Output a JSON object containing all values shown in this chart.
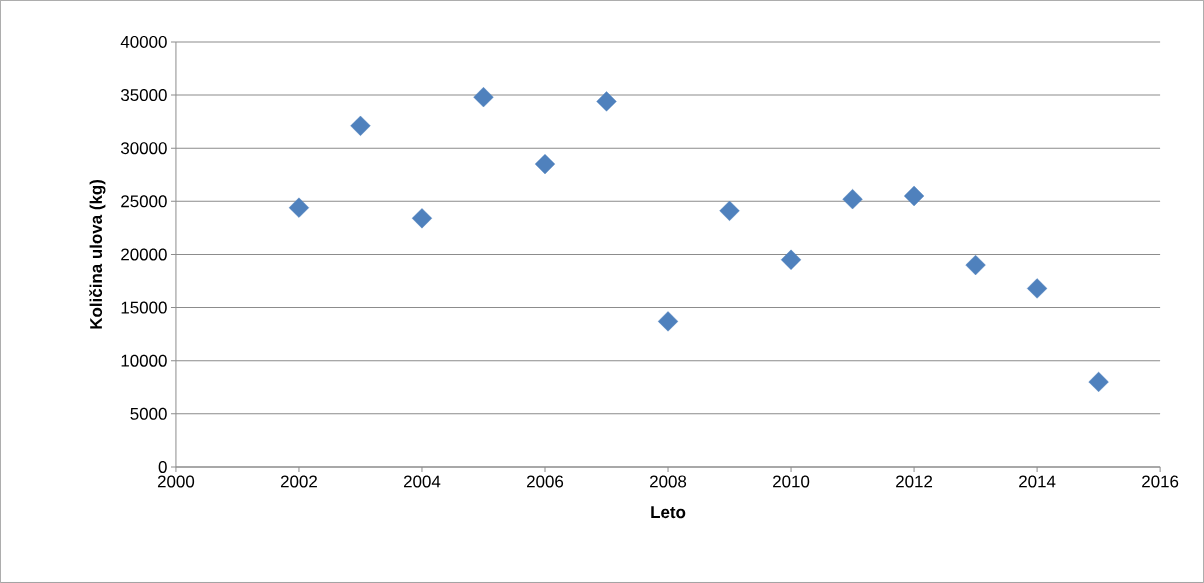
{
  "chart_data": {
    "type": "scatter",
    "xlabel": "Leto",
    "ylabel": "Količina ulova (kg)",
    "x": [
      2002,
      2003,
      2004,
      2005,
      2006,
      2007,
      2008,
      2009,
      2010,
      2011,
      2012,
      2013,
      2014,
      2015
    ],
    "values": [
      24400,
      32100,
      23400,
      34800,
      28500,
      34400,
      13700,
      24100,
      19500,
      25200,
      25500,
      19000,
      16800,
      8000
    ],
    "color": "#4f81bd",
    "marker": "diamond",
    "grid": "y",
    "xlim": [
      2000,
      2016
    ],
    "xticks": [
      2000,
      2002,
      2004,
      2006,
      2008,
      2010,
      2012,
      2014,
      2016
    ],
    "ylim": [
      0,
      40000
    ],
    "yticks": [
      0,
      5000,
      10000,
      15000,
      20000,
      25000,
      30000,
      35000,
      40000
    ]
  }
}
